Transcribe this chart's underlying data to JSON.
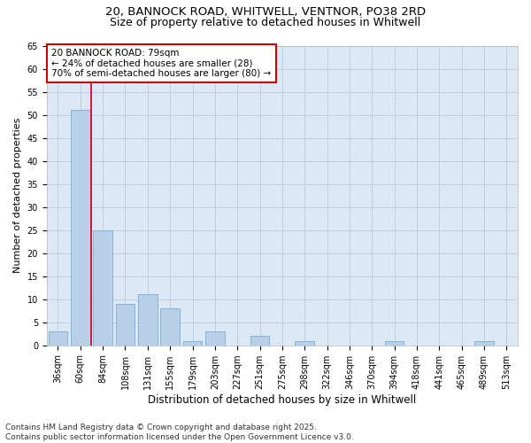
{
  "title_line1": "20, BANNOCK ROAD, WHITWELL, VENTNOR, PO38 2RD",
  "title_line2": "Size of property relative to detached houses in Whitwell",
  "xlabel": "Distribution of detached houses by size in Whitwell",
  "ylabel": "Number of detached properties",
  "categories": [
    "36sqm",
    "60sqm",
    "84sqm",
    "108sqm",
    "131sqm",
    "155sqm",
    "179sqm",
    "203sqm",
    "227sqm",
    "251sqm",
    "275sqm",
    "298sqm",
    "322sqm",
    "346sqm",
    "370sqm",
    "394sqm",
    "418sqm",
    "441sqm",
    "465sqm",
    "489sqm",
    "513sqm"
  ],
  "values": [
    3,
    51,
    25,
    9,
    11,
    8,
    1,
    3,
    0,
    2,
    0,
    1,
    0,
    0,
    0,
    1,
    0,
    0,
    0,
    1,
    0
  ],
  "bar_color": "#b8cfe8",
  "bar_edge_color": "#7aacd4",
  "grid_color": "#c0d0e0",
  "bg_color": "#dce8f4",
  "annotation_text": "20 BANNOCK ROAD: 79sqm\n← 24% of detached houses are smaller (28)\n70% of semi-detached houses are larger (80) →",
  "annotation_box_color": "#cc0000",
  "vline_color": "#cc0000",
  "vline_x": 1.5,
  "ylim": [
    0,
    65
  ],
  "yticks": [
    0,
    5,
    10,
    15,
    20,
    25,
    30,
    35,
    40,
    45,
    50,
    55,
    60,
    65
  ],
  "footer_text": "Contains HM Land Registry data © Crown copyright and database right 2025.\nContains public sector information licensed under the Open Government Licence v3.0.",
  "title_fontsize": 9.5,
  "subtitle_fontsize": 9,
  "xlabel_fontsize": 8.5,
  "ylabel_fontsize": 8,
  "tick_fontsize": 7,
  "annotation_fontsize": 7.5,
  "footer_fontsize": 6.5
}
